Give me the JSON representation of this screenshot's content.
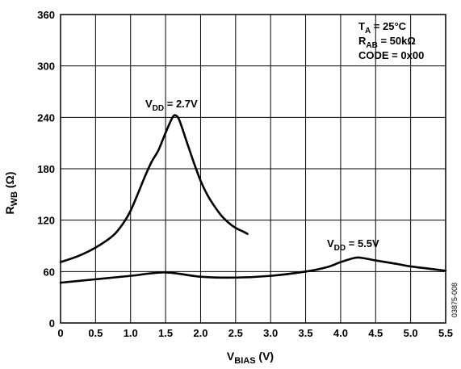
{
  "chart_data": {
    "type": "line",
    "xlabel": {
      "main": "V",
      "sub": "BIAS",
      "unit": " (V)"
    },
    "ylabel": {
      "main": "R",
      "sub": "WB",
      "unit": " (Ω)"
    },
    "xlim": [
      0,
      5.5
    ],
    "ylim": [
      0,
      360
    ],
    "x_ticks": [
      "0",
      "0.5",
      "1.0",
      "1.5",
      "2.0",
      "2.5",
      "3.0",
      "3.5",
      "4.0",
      "4.5",
      "5.0",
      "5.5"
    ],
    "y_ticks": [
      "0",
      "60",
      "120",
      "180",
      "240",
      "300",
      "360"
    ],
    "grid": true,
    "conditions": [
      {
        "main": "T",
        "sub": "A",
        "rest": " = 25°C"
      },
      {
        "main": "R",
        "sub": "AB",
        "rest": " = 50kΩ"
      },
      {
        "main": "CODE = 0x00",
        "sub": "",
        "rest": ""
      }
    ],
    "figure_number": "03875-008",
    "series": [
      {
        "name": "VDD = 2.7V",
        "label": {
          "main": "V",
          "sub": "DD",
          "rest": " = 2.7V"
        },
        "x": [
          0,
          0.25,
          0.5,
          0.75,
          0.9,
          1.0,
          1.1,
          1.2,
          1.3,
          1.4,
          1.5,
          1.6,
          1.65,
          1.7,
          1.8,
          1.9,
          2.0,
          2.1,
          2.2,
          2.3,
          2.4,
          2.5,
          2.6,
          2.67
        ],
        "y": [
          71,
          78,
          88,
          102,
          117,
          131,
          150,
          170,
          188,
          202,
          222,
          240,
          242,
          236,
          212,
          188,
          166,
          149,
          136,
          125,
          117,
          111,
          107,
          104
        ]
      },
      {
        "name": "VDD = 5.5V",
        "label": {
          "main": "V",
          "sub": "DD",
          "rest": " = 5.5V"
        },
        "x": [
          0,
          0.5,
          1.0,
          1.5,
          2.0,
          2.5,
          3.0,
          3.5,
          3.8,
          4.0,
          4.2,
          4.3,
          4.5,
          4.8,
          5.0,
          5.5
        ],
        "y": [
          47,
          51,
          55,
          59,
          54,
          53,
          55,
          60,
          65,
          71,
          76,
          76,
          73,
          69,
          66,
          61
        ]
      }
    ]
  }
}
